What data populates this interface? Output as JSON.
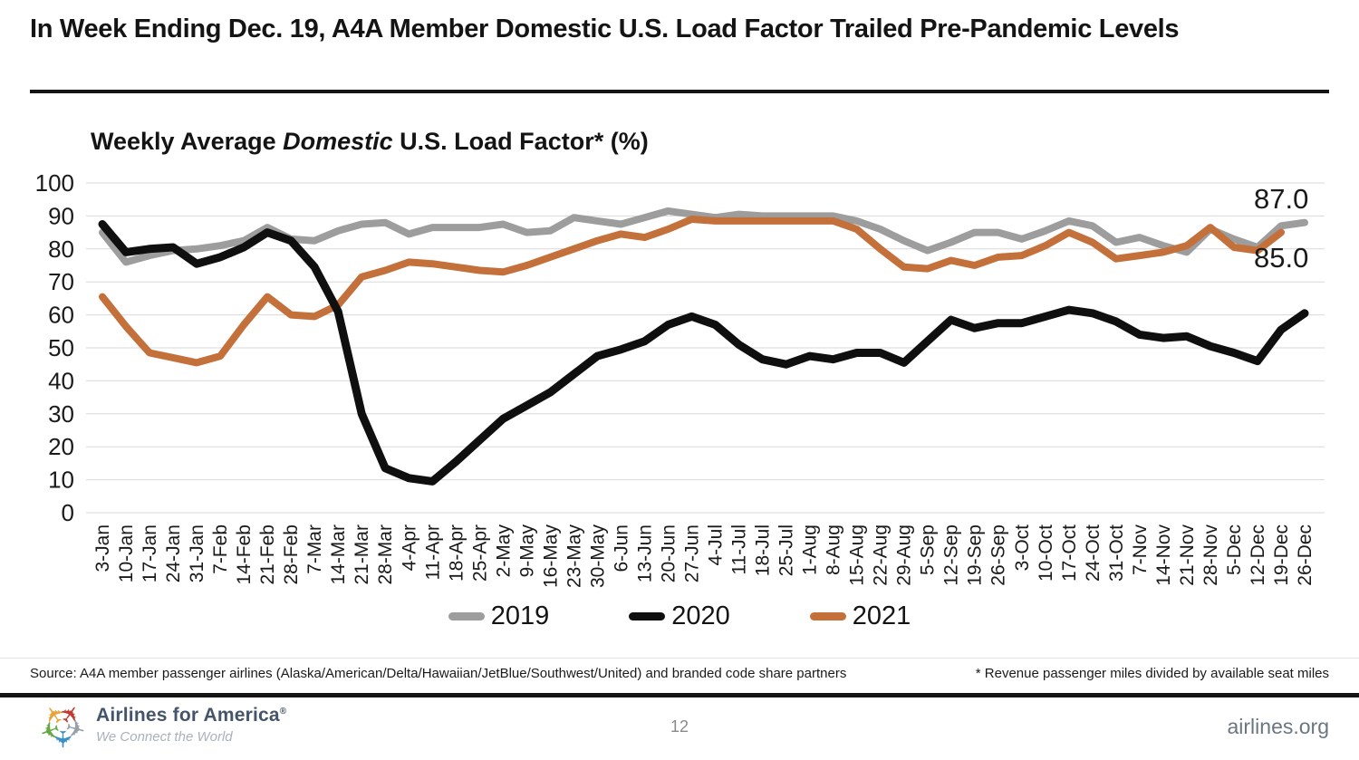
{
  "page": {
    "title": "In Week Ending Dec. 19, A4A Member Domestic U.S. Load Factor Trailed Pre-Pandemic Levels",
    "source_left": "Source: A4A member passenger airlines (Alaska/American/Delta/Hawaiian/JetBlue/Southwest/United) and branded code share partners",
    "footnote_right": "* Revenue passenger miles divided by available seat miles",
    "page_number": "12",
    "website": "airlines.org",
    "logo": {
      "name": "Airlines for America",
      "registered": "®",
      "tagline": "We Connect the World",
      "plane_colors": [
        "#e8a33d",
        "#c13b33",
        "#97a0a8",
        "#3a8fc7",
        "#64a844"
      ]
    }
  },
  "chart_data": {
    "type": "line",
    "title_parts": {
      "prefix": "Weekly Average ",
      "italic": "Domestic",
      "suffix": " U.S. Load Factor* (%)"
    },
    "xlabel": "",
    "ylabel": "",
    "ylim": [
      0,
      100
    ],
    "ytick_step": 10,
    "grid": "horizontal",
    "legend_position": "bottom",
    "categories": [
      "3-Jan",
      "10-Jan",
      "17-Jan",
      "24-Jan",
      "31-Jan",
      "7-Feb",
      "14-Feb",
      "21-Feb",
      "28-Feb",
      "7-Mar",
      "14-Mar",
      "21-Mar",
      "28-Mar",
      "4-Apr",
      "11-Apr",
      "18-Apr",
      "25-Apr",
      "2-May",
      "9-May",
      "16-May",
      "23-May",
      "30-May",
      "6-Jun",
      "13-Jun",
      "20-Jun",
      "27-Jun",
      "4-Jul",
      "11-Jul",
      "18-Jul",
      "25-Jul",
      "1-Aug",
      "8-Aug",
      "15-Aug",
      "22-Aug",
      "29-Aug",
      "5-Sep",
      "12-Sep",
      "19-Sep",
      "26-Sep",
      "3-Oct",
      "10-Oct",
      "17-Oct",
      "24-Oct",
      "31-Oct",
      "7-Nov",
      "14-Nov",
      "21-Nov",
      "28-Nov",
      "5-Dec",
      "12-Dec",
      "19-Dec",
      "26-Dec"
    ],
    "series": [
      {
        "name": "2019",
        "color": "#9d9d9d",
        "stroke_width": 8,
        "values": [
          85,
          76,
          78,
          79.5,
          80,
          81,
          82.5,
          86.5,
          83,
          82.5,
          85.5,
          87.5,
          88,
          84.5,
          86.5,
          86.5,
          86.5,
          87.5,
          85,
          85.5,
          89.5,
          88.5,
          87.5,
          89.5,
          91.5,
          90.5,
          89.5,
          90.5,
          90,
          90,
          90,
          90,
          88.5,
          86,
          82.5,
          79.5,
          82,
          85,
          85,
          83,
          85.5,
          88.5,
          87,
          82,
          83.5,
          81,
          79,
          86,
          83,
          80.5,
          87,
          88
        ]
      },
      {
        "name": "2020",
        "color": "#0f0f0f",
        "stroke_width": 9,
        "values": [
          87.5,
          79,
          80,
          80.5,
          75.5,
          77.5,
          80.5,
          85,
          82.5,
          74.5,
          61,
          30,
          13.5,
          10.5,
          9.5,
          15.5,
          22,
          28.5,
          32.5,
          36.5,
          42,
          47.5,
          49.5,
          52,
          57,
          59.5,
          57,
          51,
          46.5,
          45,
          47.5,
          46.5,
          48.5,
          48.5,
          45.5,
          52,
          58.5,
          56,
          57.5,
          57.5,
          59.5,
          61.5,
          60.5,
          58,
          54,
          53,
          53.5,
          50.5,
          48.5,
          46,
          55.5,
          60.5
        ]
      },
      {
        "name": "2021",
        "color": "#c4703b",
        "stroke_width": 8,
        "values": [
          65.5,
          56.5,
          48.5,
          47,
          45.5,
          47.5,
          57,
          65.5,
          60,
          59.5,
          63,
          71.5,
          73.5,
          76,
          75.5,
          74.5,
          73.5,
          73,
          75,
          77.5,
          80,
          82.5,
          84.5,
          83.5,
          86,
          89,
          88.5,
          88.5,
          88.5,
          88.5,
          88.5,
          88.5,
          86,
          80,
          74.5,
          74,
          76.5,
          75,
          77.5,
          78,
          81,
          85,
          82,
          77,
          78,
          79,
          81,
          86.5,
          80.5,
          79.5,
          85,
          null
        ]
      }
    ],
    "annotations": [
      {
        "text": "87.0",
        "series": "2019",
        "category": "19-Dec"
      },
      {
        "text": "85.0",
        "series": "2021",
        "category": "19-Dec"
      }
    ]
  }
}
